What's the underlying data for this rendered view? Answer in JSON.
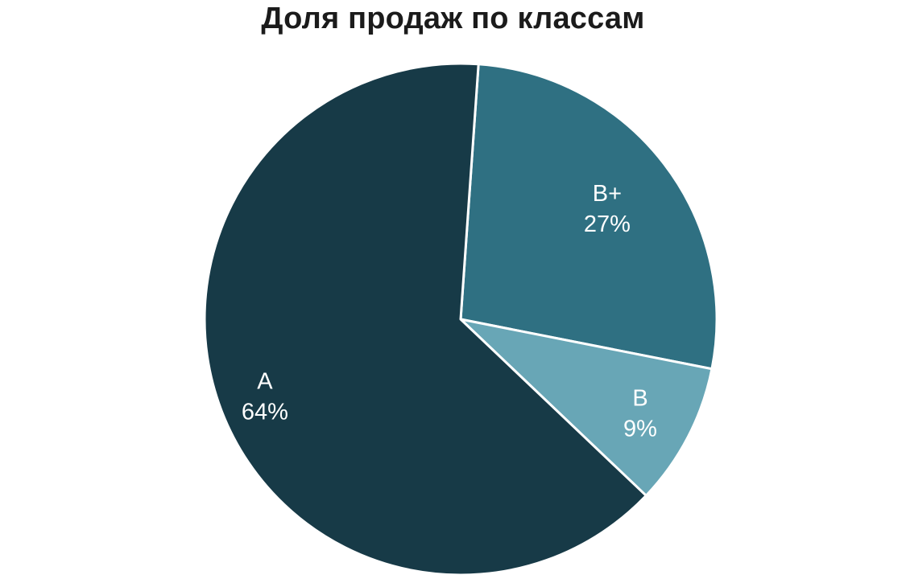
{
  "chart_data": {
    "type": "pie",
    "title": "Доля продаж по классам",
    "slices": [
      {
        "category": "B+",
        "value": 27,
        "value_label": "27%",
        "color": "#2f7082"
      },
      {
        "category": "B",
        "value": 9,
        "value_label": "9%",
        "color": "#68a6b6"
      },
      {
        "category": "A",
        "value": 64,
        "value_label": "64%",
        "color": "#173a47"
      }
    ],
    "start_angle_deg": 4,
    "direction": "clockwise",
    "legend": "none",
    "slice_border_color": "#ffffff"
  }
}
